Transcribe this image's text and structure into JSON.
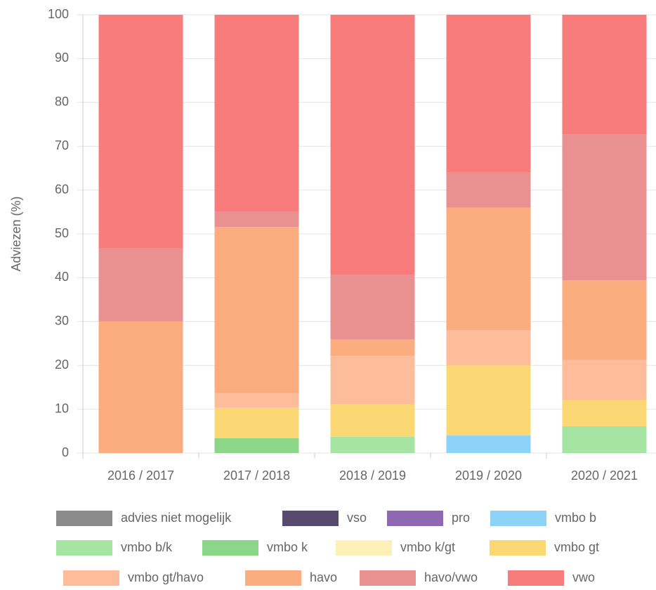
{
  "chart_data": {
    "type": "stacked_bar",
    "y_label": "Adviezen (%)",
    "categories": [
      "2016 / 2017",
      "2017 / 2018",
      "2018 / 2019",
      "2019 / 2020",
      "2020 / 2021"
    ],
    "ylim": [
      0,
      100
    ],
    "yticks": [
      0,
      10,
      20,
      30,
      40,
      50,
      60,
      70,
      80,
      90,
      100
    ],
    "grid": true,
    "legend": "bottom",
    "series": [
      {
        "name": "advies niet mogelijk",
        "color": "#8a8a8a",
        "values": [
          0,
          0,
          0,
          0,
          0
        ]
      },
      {
        "name": "vso",
        "color": "#574a6e",
        "values": [
          0,
          0,
          0,
          0,
          0
        ]
      },
      {
        "name": "pro",
        "color": "#8e68b3",
        "values": [
          0,
          0,
          0,
          0,
          0
        ]
      },
      {
        "name": "vmbo b",
        "color": "#8dd3f8",
        "values": [
          0,
          0,
          0,
          4,
          0
        ]
      },
      {
        "name": "vmbo b/k",
        "color": "#a6e4a3",
        "values": [
          0,
          0,
          3.7,
          0,
          6.1
        ]
      },
      {
        "name": "vmbo k",
        "color": "#8cd68a",
        "values": [
          0,
          3.4,
          0,
          0,
          0
        ]
      },
      {
        "name": "vmbo k/gt",
        "color": "#fdf0b8",
        "values": [
          0,
          0,
          0,
          0,
          0
        ]
      },
      {
        "name": "vmbo gt",
        "color": "#fcd874",
        "values": [
          0,
          6.9,
          7.4,
          16,
          6
        ]
      },
      {
        "name": "vmbo gt/havo",
        "color": "#fdbd9b",
        "values": [
          0,
          3.4,
          11.1,
          8,
          9.1
        ]
      },
      {
        "name": "havo",
        "color": "#fcad80",
        "values": [
          30,
          37.9,
          3.7,
          28,
          18.2
        ]
      },
      {
        "name": "havo/vwo",
        "color": "#e89190",
        "values": [
          16.7,
          3.4,
          14.8,
          8,
          33.3
        ]
      },
      {
        "name": "vwo",
        "color": "#f77c7b",
        "values": [
          53.3,
          45,
          59.3,
          36,
          27.3
        ]
      }
    ]
  }
}
